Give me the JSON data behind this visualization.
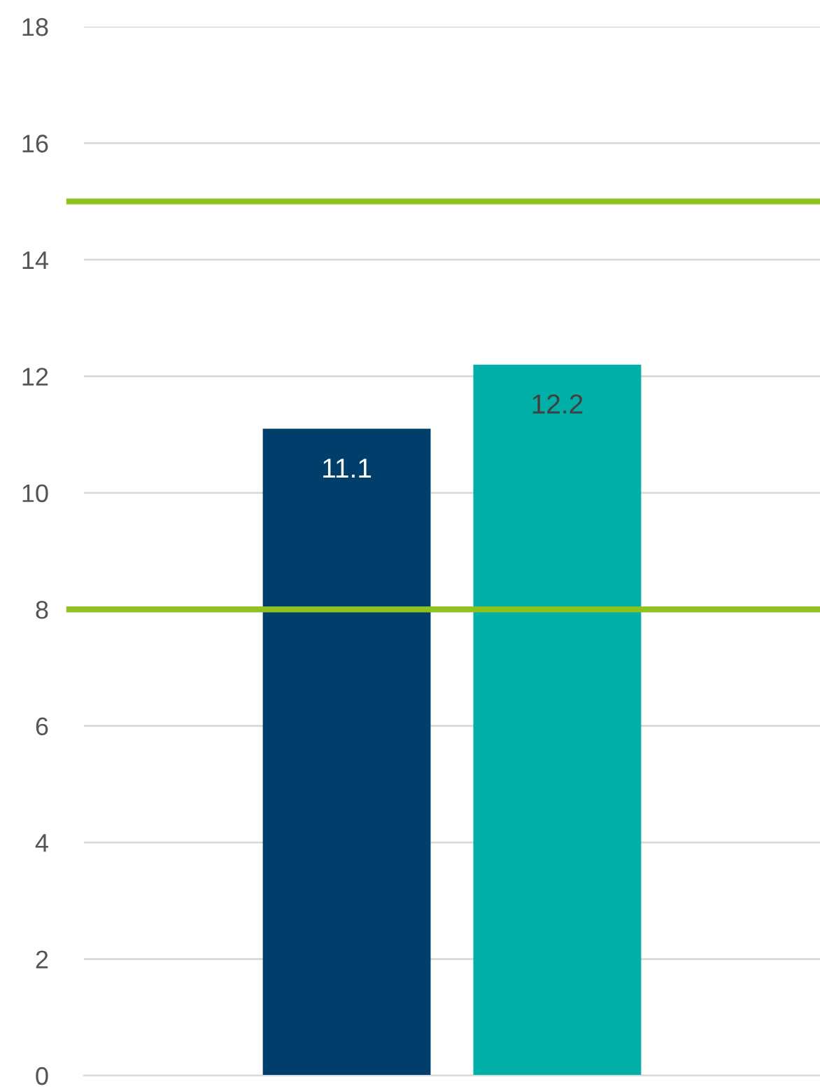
{
  "chart_data": {
    "type": "bar",
    "categories": [
      null
    ],
    "series": [
      {
        "color": "#003f6b",
        "values": [
          11.1
        ]
      },
      {
        "color": "#00b0a8",
        "values": [
          12.2
        ]
      }
    ],
    "ylim": [
      0,
      18
    ],
    "yticks": [
      0,
      2,
      4,
      6,
      8,
      10,
      12,
      14,
      16,
      18
    ],
    "grid": "y",
    "legend": false,
    "data_labels": true,
    "ref_lines": [
      {
        "axis": "y",
        "value": 15,
        "color": "#8dc21f"
      },
      {
        "axis": "y",
        "value": 8,
        "color": "#8dc21f"
      }
    ]
  }
}
